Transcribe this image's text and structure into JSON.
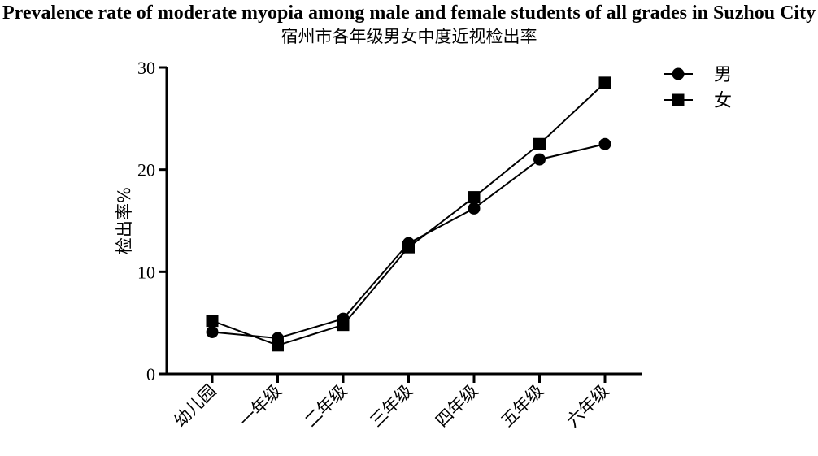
{
  "chart_data": {
    "type": "line",
    "title": "Prevalence rate of moderate myopia among male and female students of all grades in Suzhou City",
    "subtitle": "宿州市各年级男女中度近视检出率",
    "xlabel": "",
    "ylabel": "检出率%",
    "ylim": [
      0,
      30
    ],
    "yticks": [
      0,
      10,
      20,
      30
    ],
    "categories": [
      "幼儿园",
      "一年级",
      "二年级",
      "三年级",
      "四年级",
      "五年级",
      "六年级"
    ],
    "series": [
      {
        "name": "男",
        "marker": "circle",
        "values": [
          4.1,
          3.5,
          5.4,
          12.8,
          16.2,
          21.0,
          22.5
        ]
      },
      {
        "name": "女",
        "marker": "square",
        "values": [
          5.2,
          2.8,
          4.8,
          12.4,
          17.3,
          22.5,
          28.5
        ]
      }
    ],
    "legend_position": "top-right",
    "grid": false
  },
  "colors": {
    "line": "#000000",
    "marker": "#000000"
  }
}
